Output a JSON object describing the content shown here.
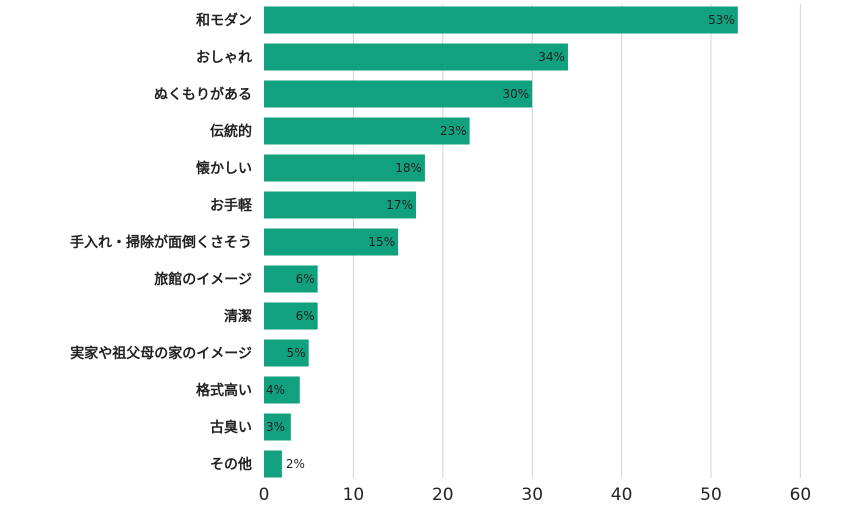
{
  "chart_data": {
    "type": "bar",
    "orientation": "horizontal",
    "categories": [
      "和モダン",
      "おしゃれ",
      "ぬくもりがある",
      "伝統的",
      "懐かしい",
      "お手軽",
      "手入れ・掃除が面倒くさそう",
      "旅館のイメージ",
      "清潔",
      "実家や祖父母の家のイメージ",
      "格式高い",
      "古臭い",
      "その他"
    ],
    "values": [
      53,
      34,
      30,
      23,
      18,
      17,
      15,
      6,
      6,
      5,
      4,
      3,
      2
    ],
    "value_labels": [
      "53%",
      "34%",
      "30%",
      "23%",
      "18%",
      "17%",
      "15%",
      "6%",
      "6%",
      "5%",
      "4%",
      "3%",
      "2%"
    ],
    "x_ticks": [
      "0",
      "10",
      "20",
      "30",
      "40",
      "50",
      "60"
    ],
    "xlim": [
      0,
      60
    ],
    "grid": "vertical",
    "colors": {
      "bar": "#11a17e"
    }
  }
}
